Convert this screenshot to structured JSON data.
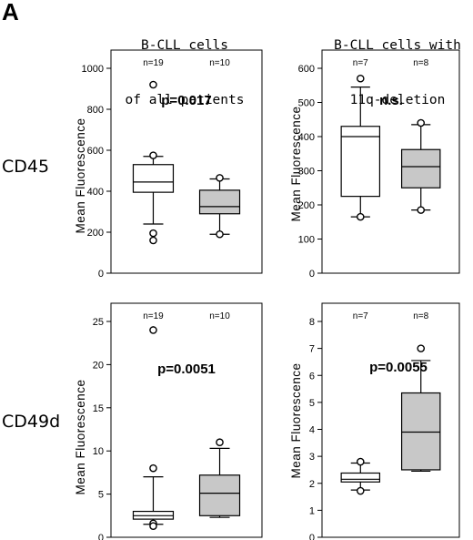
{
  "panel_label": "A",
  "column_titles": [
    {
      "line1": "B-CLL cells",
      "line2": "of all patients"
    },
    {
      "line1": "B-CLL cells with",
      "line2": "11q-deletion"
    }
  ],
  "row_labels": [
    "CD45",
    "CD49d"
  ],
  "chart_data": [
    {
      "type": "box",
      "row": "CD45",
      "column": "of all patients",
      "ylabel": "Mean Fluorescence",
      "ylim": [
        0,
        1000
      ],
      "yticks": [
        0,
        200,
        400,
        600,
        800,
        1000
      ],
      "tick_labels": [
        "0",
        "200",
        "400",
        "600",
        "800",
        "1000"
      ],
      "annotation": "p=0.017",
      "series": [
        {
          "n_label": "n=19",
          "fill": "#ffffff",
          "q1": 395,
          "median": 445,
          "q3": 530,
          "whisker_low": 240,
          "whisker_high": 570,
          "outliers": [
            920,
            575,
            195,
            160
          ]
        },
        {
          "n_label": "n=10",
          "fill": "#c8c8c8",
          "q1": 290,
          "median": 325,
          "q3": 405,
          "whisker_low": 190,
          "whisker_high": 460,
          "outliers": [
            465,
            190
          ]
        }
      ]
    },
    {
      "type": "box",
      "row": "CD45",
      "column": "11q-deletion",
      "ylabel": "Mean Fluorescence",
      "ylim": [
        0,
        600
      ],
      "yticks": [
        0,
        100,
        200,
        300,
        400,
        500,
        600
      ],
      "tick_labels": [
        "0",
        "100",
        "200",
        "300",
        "400",
        "500",
        "600"
      ],
      "annotation": "n.s.",
      "series": [
        {
          "n_label": "n=7",
          "fill": "#ffffff",
          "q1": 225,
          "median": 400,
          "q3": 430,
          "whisker_low": 165,
          "whisker_high": 545,
          "outliers": [
            570,
            165
          ]
        },
        {
          "n_label": "n=8",
          "fill": "#c8c8c8",
          "q1": 250,
          "median": 312,
          "q3": 362,
          "whisker_low": 185,
          "whisker_high": 435,
          "outliers": [
            440,
            185
          ]
        }
      ]
    },
    {
      "type": "box",
      "row": "CD49d",
      "column": "of all patients",
      "ylabel": "Mean Fluorescence",
      "ylim": [
        0,
        25
      ],
      "yticks": [
        0,
        5,
        10,
        15,
        20,
        25
      ],
      "tick_labels": [
        "0",
        "5",
        "10",
        "15",
        "20",
        "25"
      ],
      "annotation": "p=0.0051",
      "series": [
        {
          "n_label": "n=19",
          "fill": "#ffffff",
          "q1": 2.1,
          "median": 2.5,
          "q3": 3.0,
          "whisker_low": 1.5,
          "whisker_high": 7.0,
          "outliers": [
            24,
            8.0,
            1.6,
            1.3
          ]
        },
        {
          "n_label": "n=10",
          "fill": "#c8c8c8",
          "q1": 2.5,
          "median": 5.1,
          "q3": 7.2,
          "whisker_low": 2.3,
          "whisker_high": 10.3,
          "outliers": [
            11
          ]
        }
      ]
    },
    {
      "type": "box",
      "row": "CD49d",
      "column": "11q-deletion",
      "ylabel": "Mean Fluorescence",
      "ylim": [
        0,
        8
      ],
      "yticks": [
        0,
        1,
        2,
        3,
        4,
        5,
        6,
        7,
        8
      ],
      "tick_labels": [
        "0",
        "1",
        "2",
        "3",
        "4",
        "5",
        "6",
        "7",
        "8"
      ],
      "annotation": "p=0.0055",
      "series": [
        {
          "n_label": "n=7",
          "fill": "#ffffff",
          "q1": 2.05,
          "median": 2.15,
          "q3": 2.38,
          "whisker_low": 1.75,
          "whisker_high": 2.75,
          "outliers": [
            2.8,
            1.72
          ]
        },
        {
          "n_label": "n=8",
          "fill": "#c8c8c8",
          "q1": 2.5,
          "median": 3.9,
          "q3": 5.35,
          "whisker_low": 2.45,
          "whisker_high": 6.55,
          "outliers": [
            7.0
          ]
        }
      ]
    }
  ]
}
